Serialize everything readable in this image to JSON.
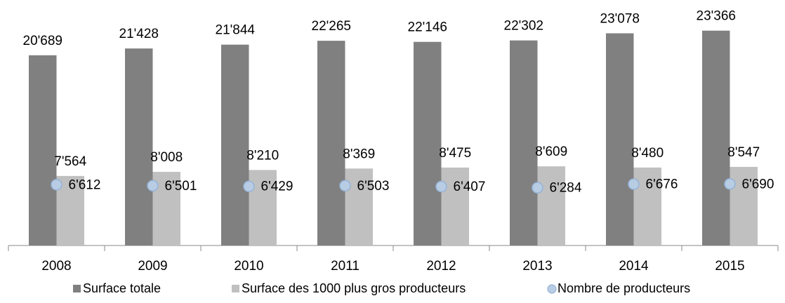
{
  "chart_data": {
    "type": "bar",
    "categories": [
      "2008",
      "2009",
      "2010",
      "2011",
      "2012",
      "2013",
      "2014",
      "2015"
    ],
    "series": [
      {
        "name": "Surface totale",
        "color": "#808080",
        "type": "bar",
        "values": [
          20689,
          21428,
          21844,
          22265,
          22146,
          22302,
          23078,
          23366
        ],
        "value_labels": [
          "20'689",
          "21'428",
          "21'844",
          "22'265",
          "22'146",
          "22'302",
          "23'078",
          "23'366"
        ]
      },
      {
        "name": "Surface des 1000 plus gros producteurs",
        "color": "#c0c0c0",
        "type": "bar",
        "values": [
          7564,
          8008,
          8210,
          8369,
          8475,
          8609,
          8480,
          8547
        ],
        "value_labels": [
          "7'564",
          "8'008",
          "8'210",
          "8'369",
          "8'475",
          "8'609",
          "8'480",
          "8'547"
        ]
      },
      {
        "name": "Nombre de producteurs",
        "color": "#b8cce4",
        "type": "scatter",
        "values": [
          6612,
          6501,
          6429,
          6503,
          6407,
          6284,
          6676,
          6690
        ],
        "value_labels": [
          "6'612",
          "6'501",
          "6'429",
          "6'503",
          "6'407",
          "6'284",
          "6'676",
          "6'690"
        ]
      }
    ],
    "ylim": [
      0,
      26700
    ],
    "legend": "bottom"
  }
}
